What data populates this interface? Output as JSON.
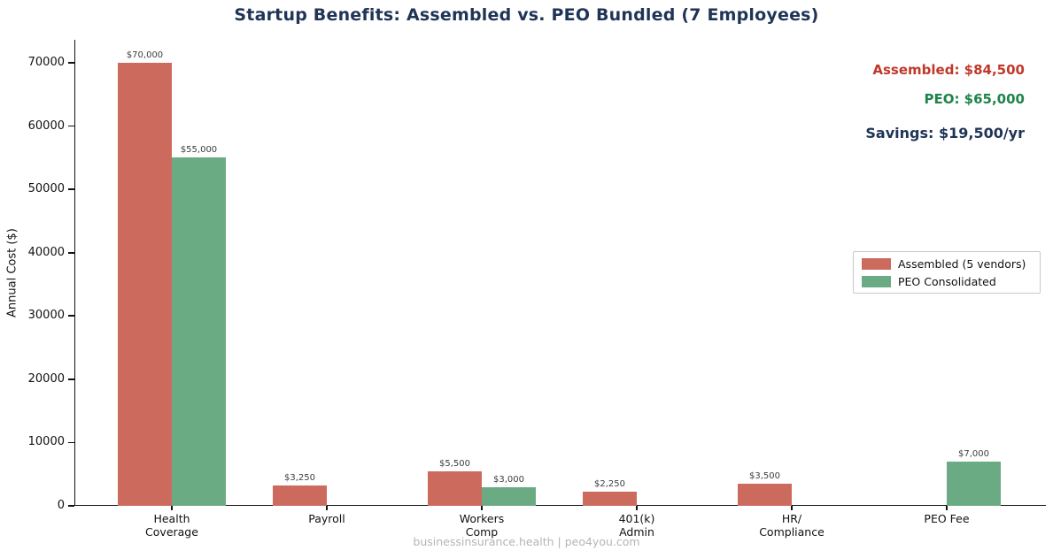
{
  "title": "Startup Benefits: Assembled vs. PEO Bundled (7 Employees)",
  "annotations": {
    "assembled_total": "Assembled: $84,500",
    "peo_total": "PEO: $65,000",
    "savings": "Savings: $19,500/yr"
  },
  "colors": {
    "title": "#1f3456",
    "assembled_bar": "#cd6a5e",
    "peo_bar": "#6aab84",
    "assembled_text": "#c0392b",
    "peo_text": "#1e8449",
    "savings_text": "#1f3456"
  },
  "footer": "businessinsurance.health  |  peo4you.com",
  "chart_data": {
    "type": "bar",
    "title": "Startup Benefits: Assembled vs. PEO Bundled (7 Employees)",
    "xlabel": "",
    "ylabel": "Annual Cost ($)",
    "ylim": [
      0,
      73500
    ],
    "yticks": [
      0,
      10000,
      20000,
      30000,
      40000,
      50000,
      60000,
      70000
    ],
    "grid": false,
    "legend_position": "center right",
    "categories": [
      "Health\nCoverage",
      "Payroll",
      "Workers\nComp",
      "401(k)\nAdmin",
      "HR/\nCompliance",
      "PEO Fee"
    ],
    "series": [
      {
        "name": "Assembled (5 vendors)",
        "color": "#cd6a5e",
        "values": [
          70000,
          3250,
          5500,
          2250,
          3500,
          null
        ],
        "labels": [
          "$70,000",
          "$3,250",
          "$5,500",
          "$2,250",
          "$3,500",
          null
        ]
      },
      {
        "name": "PEO Consolidated",
        "color": "#6aab84",
        "values": [
          55000,
          null,
          3000,
          null,
          null,
          7000
        ],
        "labels": [
          "$55,000",
          null,
          "$3,000",
          null,
          null,
          "$7,000"
        ]
      }
    ]
  }
}
